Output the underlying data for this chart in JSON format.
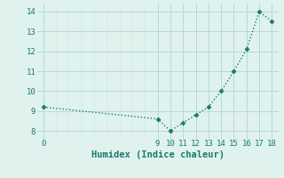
{
  "x": [
    0,
    9,
    10,
    11,
    12,
    13,
    14,
    15,
    16,
    17,
    18
  ],
  "y": [
    9.2,
    8.6,
    8.0,
    8.4,
    8.8,
    9.2,
    10.0,
    11.0,
    12.1,
    14.0,
    13.5
  ],
  "color": "#1a7a6e",
  "bg_color": "#dff2ee",
  "grid_major_color": "#b8d8d4",
  "grid_minor_color": "#cce8e4",
  "xlabel": "Humidex (Indice chaleur)",
  "xlim": [
    -0.5,
    18.5
  ],
  "ylim": [
    7.6,
    14.4
  ],
  "xticks": [
    0,
    9,
    10,
    11,
    12,
    13,
    14,
    15,
    16,
    17,
    18
  ],
  "yticks": [
    8,
    9,
    10,
    11,
    12,
    13,
    14
  ],
  "xlabel_fontsize": 7.5,
  "tick_fontsize": 6.5,
  "marker": "D",
  "markersize": 2.5,
  "linewidth": 1.0
}
